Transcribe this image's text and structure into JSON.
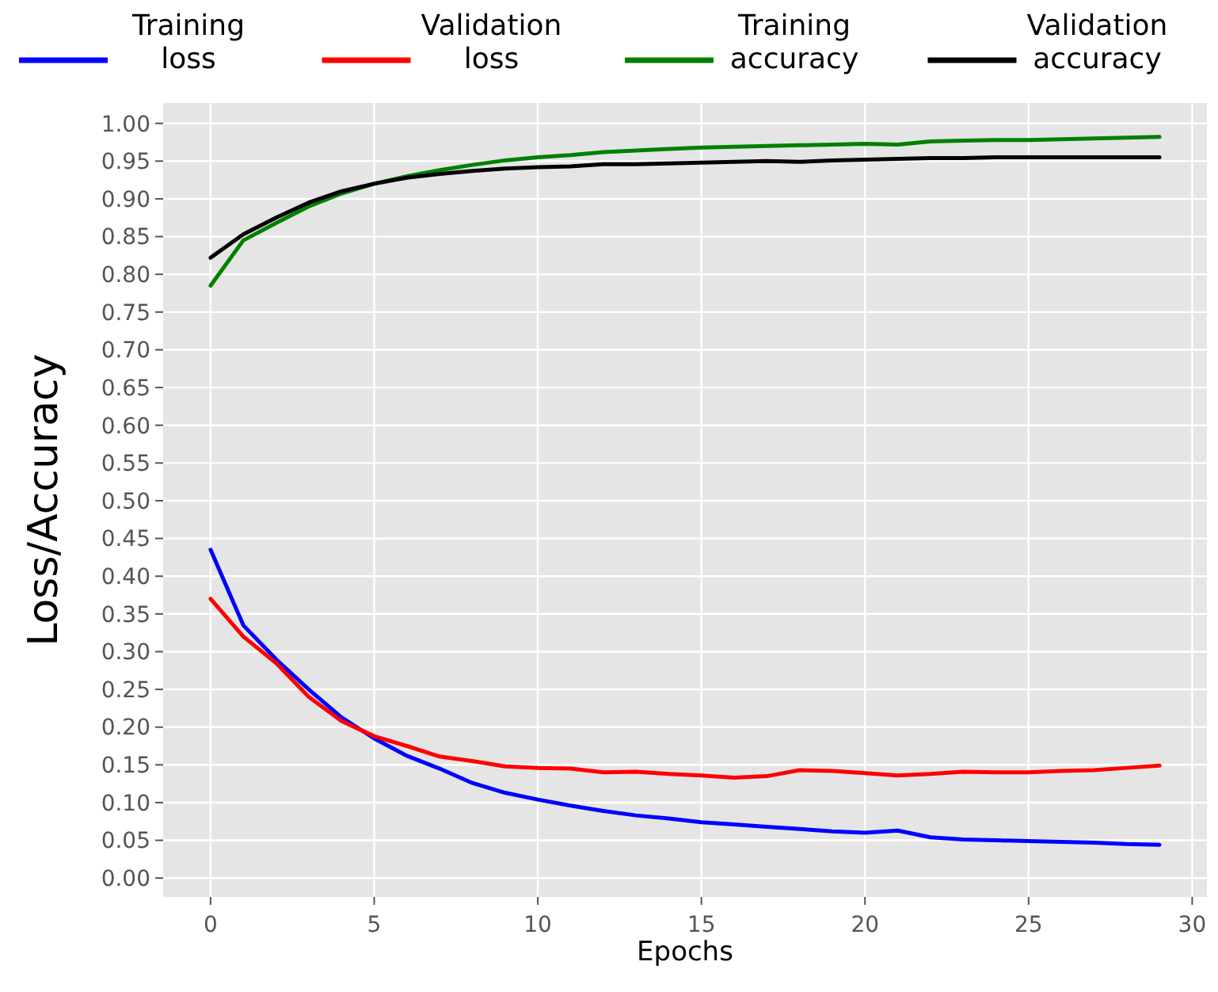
{
  "chart_data": {
    "type": "line",
    "xlabel": "Epochs",
    "ylabel": "Loss/Accuracy",
    "x": [
      0,
      1,
      2,
      3,
      4,
      5,
      6,
      7,
      8,
      9,
      10,
      11,
      12,
      13,
      14,
      15,
      16,
      17,
      18,
      19,
      20,
      21,
      22,
      23,
      24,
      25,
      26,
      27,
      28,
      29
    ],
    "series": [
      {
        "name": "Training loss",
        "color": "#0000ff",
        "values": [
          0.435,
          0.335,
          0.29,
          0.25,
          0.213,
          0.185,
          0.162,
          0.145,
          0.126,
          0.113,
          0.104,
          0.096,
          0.089,
          0.083,
          0.079,
          0.074,
          0.071,
          0.068,
          0.065,
          0.062,
          0.06,
          0.063,
          0.054,
          0.051,
          0.05,
          0.049,
          0.048,
          0.047,
          0.045,
          0.044
        ]
      },
      {
        "name": "Validation loss",
        "color": "#ff0000",
        "values": [
          0.37,
          0.32,
          0.285,
          0.24,
          0.208,
          0.188,
          0.175,
          0.161,
          0.155,
          0.148,
          0.146,
          0.145,
          0.14,
          0.141,
          0.138,
          0.136,
          0.133,
          0.135,
          0.143,
          0.142,
          0.139,
          0.136,
          0.138,
          0.141,
          0.14,
          0.14,
          0.142,
          0.143,
          0.146,
          0.149
        ]
      },
      {
        "name": "Training accuracy",
        "color": "#008000",
        "values": [
          0.785,
          0.845,
          0.868,
          0.89,
          0.907,
          0.92,
          0.93,
          0.938,
          0.945,
          0.951,
          0.955,
          0.958,
          0.962,
          0.964,
          0.966,
          0.968,
          0.969,
          0.97,
          0.971,
          0.972,
          0.973,
          0.972,
          0.976,
          0.977,
          0.978,
          0.978,
          0.979,
          0.98,
          0.981,
          0.982
        ]
      },
      {
        "name": "Validation accuracy",
        "color": "#000000",
        "values": [
          0.822,
          0.853,
          0.875,
          0.895,
          0.91,
          0.92,
          0.928,
          0.933,
          0.937,
          0.94,
          0.942,
          0.943,
          0.946,
          0.946,
          0.947,
          0.948,
          0.949,
          0.95,
          0.949,
          0.951,
          0.952,
          0.953,
          0.954,
          0.954,
          0.955,
          0.955,
          0.955,
          0.955,
          0.955,
          0.955
        ]
      }
    ],
    "xlim": [
      -1.45,
      30.45
    ],
    "xticks": [
      0,
      5,
      10,
      15,
      20,
      25,
      30
    ],
    "ylim": [
      -0.025,
      1.027
    ],
    "yticks": [
      {
        "value": 0,
        "label": "0.00"
      },
      {
        "value": 0.05,
        "label": "0.05"
      },
      {
        "value": 0.1,
        "label": "0.10"
      },
      {
        "value": 0.15,
        "label": "0.15"
      },
      {
        "value": 0.2,
        "label": "0.20"
      },
      {
        "value": 0.25,
        "label": "0.25"
      },
      {
        "value": 0.3,
        "label": "0.30"
      },
      {
        "value": 0.35,
        "label": "0.35"
      },
      {
        "value": 0.4,
        "label": "0.40"
      },
      {
        "value": 0.45,
        "label": "0.45"
      },
      {
        "value": 0.5,
        "label": "0.50"
      },
      {
        "value": 0.55,
        "label": "0.55"
      },
      {
        "value": 0.6,
        "label": "0.60"
      },
      {
        "value": 0.65,
        "label": "0.65"
      },
      {
        "value": 0.7,
        "label": "0.70"
      },
      {
        "value": 0.75,
        "label": "0.75"
      },
      {
        "value": 0.8,
        "label": "0.80"
      },
      {
        "value": 0.85,
        "label": "0.85"
      },
      {
        "value": 0.9,
        "label": "0.90"
      },
      {
        "value": 0.95,
        "label": "0.95"
      },
      {
        "value": 1,
        "label": "1.00"
      }
    ],
    "grid": true,
    "legend": "top",
    "marker": "none",
    "line_style": "solid"
  }
}
